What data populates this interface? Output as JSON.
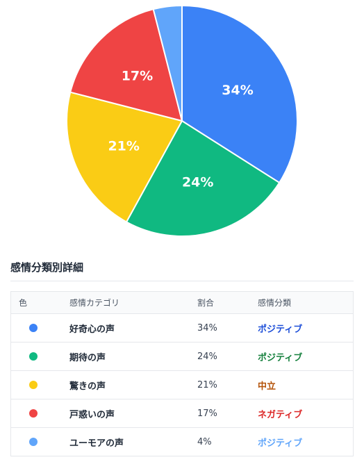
{
  "chart_data": {
    "type": "pie",
    "title": "",
    "slices": [
      {
        "label": "好奇心の声",
        "value": 34,
        "display": "34%",
        "color": "#3b82f6"
      },
      {
        "label": "期待の声",
        "value": 24,
        "display": "24%",
        "color": "#10b981"
      },
      {
        "label": "驚きの声",
        "value": 21,
        "display": "21%",
        "color": "#facc15"
      },
      {
        "label": "戸惑いの声",
        "value": 17,
        "display": "17%",
        "color": "#ef4444"
      },
      {
        "label": "ユーモアの声",
        "value": 4,
        "display": "",
        "color": "#60a5fa"
      }
    ]
  },
  "details": {
    "title": "感情分類別詳細",
    "headers": {
      "color": "色",
      "category": "感情カテゴリ",
      "ratio": "割合",
      "classification": "感情分類"
    },
    "rows": [
      {
        "dot_color": "#3b82f6",
        "category": "好奇心の声",
        "ratio": "34%",
        "classification": "ポジティブ",
        "class_color": "#1d4ed8"
      },
      {
        "dot_color": "#10b981",
        "category": "期待の声",
        "ratio": "24%",
        "classification": "ポジティブ",
        "class_color": "#15803d"
      },
      {
        "dot_color": "#facc15",
        "category": "驚きの声",
        "ratio": "21%",
        "classification": "中立",
        "class_color": "#b45309"
      },
      {
        "dot_color": "#ef4444",
        "category": "戸惑いの声",
        "ratio": "17%",
        "classification": "ネガティブ",
        "class_color": "#dc2626"
      },
      {
        "dot_color": "#60a5fa",
        "category": "ユーモアの声",
        "ratio": "4%",
        "classification": "ポジティブ",
        "class_color": "#60a5fa"
      }
    ]
  }
}
